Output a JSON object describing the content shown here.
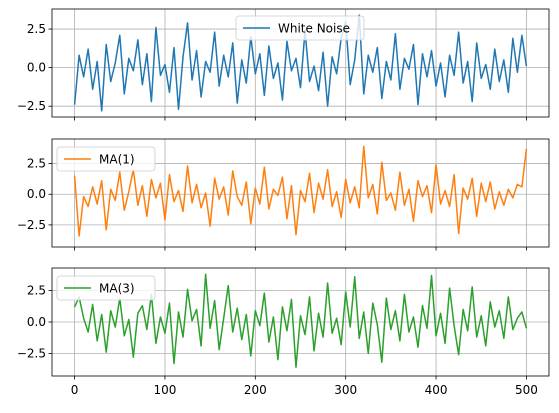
{
  "chart_data": [
    {
      "type": "line",
      "series": [
        {
          "name": "White Noise",
          "color": "#1f77b4",
          "x": [
            0,
            5,
            10,
            15,
            20,
            25,
            30,
            35,
            40,
            45,
            50,
            55,
            60,
            65,
            70,
            75,
            80,
            85,
            90,
            95,
            100,
            105,
            110,
            115,
            120,
            125,
            130,
            135,
            140,
            145,
            150,
            155,
            160,
            165,
            170,
            175,
            180,
            185,
            190,
            195,
            200,
            205,
            210,
            215,
            220,
            225,
            230,
            235,
            240,
            245,
            250,
            255,
            260,
            265,
            270,
            275,
            280,
            285,
            290,
            295,
            300,
            305,
            310,
            315,
            320,
            325,
            330,
            335,
            340,
            345,
            350,
            355,
            360,
            365,
            370,
            375,
            380,
            385,
            390,
            395,
            400,
            405,
            410,
            415,
            420,
            425,
            430,
            435,
            440,
            445,
            450,
            455,
            460,
            465,
            470,
            475,
            480,
            485,
            490,
            495,
            500
          ],
          "y": [
            -2.4,
            0.8,
            -0.6,
            1.2,
            -1.4,
            0.4,
            -2.8,
            1.5,
            -0.9,
            0.3,
            2.1,
            -1.7,
            0.6,
            -0.2,
            1.8,
            -1.1,
            0.9,
            -2.2,
            2.6,
            -0.5,
            0.2,
            -1.6,
            1.3,
            -2.7,
            0.7,
            2.9,
            -0.8,
            1.1,
            -1.9,
            0.4,
            -0.3,
            2.3,
            -1.2,
            0.8,
            -0.6,
            1.6,
            -2.3,
            0.5,
            -1.0,
            2.0,
            -0.4,
            0.9,
            -1.8,
            1.4,
            -0.7,
            0.3,
            -2.1,
            1.7,
            -0.2,
            0.6,
            -1.3,
            2.4,
            -0.9,
            0.1,
            -1.5,
            1.0,
            -2.5,
            0.7,
            -0.4,
            1.9,
            3.0,
            -1.1,
            0.5,
            3.4,
            -1.7,
            0.8,
            -0.3,
            1.3,
            -2.0,
            0.4,
            -0.8,
            2.2,
            -1.4,
            0.6,
            -0.1,
            1.5,
            -2.4,
            0.9,
            -0.6,
            1.1,
            -1.2,
            0.3,
            -1.9,
            0.8,
            -0.5,
            2.3,
            -1.0,
            0.4,
            -2.2,
            1.6,
            -0.7,
            0.2,
            -1.4,
            1.2,
            -0.9,
            0.5,
            -1.6,
            1.9,
            -0.3,
            2.1,
            0.1
          ]
        }
      ],
      "xlim": [
        -25,
        525
      ],
      "ylim": [
        -3.2,
        3.8
      ],
      "yticks": [
        -2.5,
        0.0,
        2.5
      ],
      "ytick_labels": [
        "−2.5",
        "0.0",
        "2.5"
      ],
      "xticks": [
        0,
        100,
        200,
        300,
        400,
        500
      ],
      "grid": true,
      "legend": "upper center"
    },
    {
      "type": "line",
      "series": [
        {
          "name": "MA(1)",
          "color": "#ff7f0e",
          "x": [
            0,
            5,
            10,
            15,
            20,
            25,
            30,
            35,
            40,
            45,
            50,
            55,
            60,
            65,
            70,
            75,
            80,
            85,
            90,
            95,
            100,
            105,
            110,
            115,
            120,
            125,
            130,
            135,
            140,
            145,
            150,
            155,
            160,
            165,
            170,
            175,
            180,
            185,
            190,
            195,
            200,
            205,
            210,
            215,
            220,
            225,
            230,
            235,
            240,
            245,
            250,
            255,
            260,
            265,
            270,
            275,
            280,
            285,
            290,
            295,
            300,
            305,
            310,
            315,
            320,
            325,
            330,
            335,
            340,
            345,
            350,
            355,
            360,
            365,
            370,
            375,
            380,
            385,
            390,
            395,
            400,
            405,
            410,
            415,
            420,
            425,
            430,
            435,
            440,
            445,
            450,
            455,
            460,
            465,
            470,
            475,
            480,
            485,
            490,
            495,
            500
          ],
          "y": [
            1.5,
            -3.4,
            -0.2,
            -1.0,
            0.6,
            -0.8,
            1.1,
            -2.9,
            0.4,
            -0.5,
            1.8,
            -1.3,
            0.2,
            2.0,
            -0.9,
            0.7,
            -1.8,
            1.2,
            -0.3,
            0.9,
            -2.1,
            1.6,
            -0.6,
            0.3,
            -1.4,
            2.3,
            -0.7,
            0.8,
            -1.1,
            0.1,
            -2.6,
            1.3,
            -0.4,
            0.6,
            -1.7,
            1.9,
            -0.2,
            -0.9,
            1.0,
            -2.4,
            0.5,
            -0.8,
            2.2,
            -1.2,
            0.4,
            -0.1,
            1.4,
            -2.0,
            0.7,
            -3.3,
            0.3,
            -0.6,
            1.7,
            -1.5,
            0.9,
            -0.4,
            2.0,
            -1.0,
            0.2,
            -1.9,
            1.2,
            -0.7,
            0.6,
            -1.1,
            3.9,
            -0.3,
            0.8,
            -1.6,
            2.6,
            -0.5,
            0.1,
            -1.3,
            1.8,
            -0.9,
            0.4,
            -2.2,
            1.1,
            -0.2,
            0.7,
            -1.5,
            2.4,
            -0.8,
            0.3,
            -1.0,
            1.6,
            -3.2,
            0.5,
            -0.4,
            1.3,
            -1.8,
            0.9,
            -0.6,
            1.0,
            -1.2,
            0.2,
            -0.9,
            0.4,
            -0.3,
            0.8,
            0.6,
            3.7
          ],
          "_ok": true
        }
      ],
      "xlim": [
        -25,
        525
      ],
      "ylim": [
        -4.3,
        4.5
      ],
      "yticks": [
        -2.5,
        0.0,
        2.5
      ],
      "ytick_labels": [
        "−2.5",
        "0.0",
        "2.5"
      ],
      "xticks": [
        0,
        100,
        200,
        300,
        400,
        500
      ],
      "grid": true,
      "legend": "upper left"
    },
    {
      "type": "line",
      "series": [
        {
          "name": "MA(3)",
          "color": "#2ca02c",
          "x": [
            0,
            5,
            10,
            15,
            20,
            25,
            30,
            35,
            40,
            45,
            50,
            55,
            60,
            65,
            70,
            75,
            80,
            85,
            90,
            95,
            100,
            105,
            110,
            115,
            120,
            125,
            130,
            135,
            140,
            145,
            150,
            155,
            160,
            165,
            170,
            175,
            180,
            185,
            190,
            195,
            200,
            205,
            210,
            215,
            220,
            225,
            230,
            235,
            240,
            245,
            250,
            255,
            260,
            265,
            270,
            275,
            280,
            285,
            290,
            295,
            300,
            305,
            310,
            315,
            320,
            325,
            330,
            335,
            340,
            345,
            350,
            355,
            360,
            365,
            370,
            375,
            380,
            385,
            390,
            395,
            400,
            405,
            410,
            415,
            420,
            425,
            430,
            435,
            440,
            445,
            450,
            455,
            460,
            465,
            470,
            475,
            480,
            485,
            490,
            495,
            500
          ],
          "y": [
            1.2,
            2.0,
            0.3,
            -0.8,
            1.4,
            -1.5,
            0.6,
            -2.4,
            0.9,
            -0.4,
            1.9,
            -1.1,
            0.2,
            -2.8,
            0.7,
            1.3,
            -0.6,
            2.2,
            -1.7,
            0.4,
            -0.9,
            1.5,
            -3.3,
            0.8,
            -1.2,
            2.6,
            0.1,
            1.0,
            -1.9,
            3.8,
            -0.5,
            1.7,
            -2.2,
            0.3,
            2.9,
            -0.8,
            1.1,
            -1.4,
            0.6,
            -2.7,
            0.9,
            -0.3,
            2.3,
            -1.6,
            0.4,
            -3.0,
            1.2,
            -0.7,
            1.8,
            -3.6,
            0.5,
            -1.0,
            2.0,
            -2.3,
            0.7,
            -1.2,
            3.1,
            -0.9,
            0.3,
            -1.8,
            2.4,
            -0.4,
            3.6,
            -1.3,
            0.8,
            -2.5,
            1.5,
            -0.2,
            -3.2,
            1.9,
            -0.6,
            0.9,
            -1.5,
            2.2,
            -0.8,
            0.4,
            -2.0,
            1.3,
            -0.5,
            3.7,
            -1.1,
            0.7,
            -1.7,
            2.7,
            -0.3,
            -2.6,
            1.0,
            -0.7,
            2.8,
            -1.2,
            0.5,
            -1.9,
            1.6,
            -0.4,
            0.9,
            -1.3,
            2.0,
            -0.6,
            0.3,
            0.8,
            -0.5
          ]
        }
      ],
      "xlim": [
        -25,
        525
      ],
      "ylim": [
        -4.3,
        4.3
      ],
      "yticks": [
        -2.5,
        0.0,
        2.5
      ],
      "ytick_labels": [
        "−2.5",
        "0.0",
        "2.5"
      ],
      "xticks": [
        0,
        100,
        200,
        300,
        400,
        500
      ],
      "xtick_labels": [
        "0",
        "100",
        "200",
        "300",
        "400",
        "500"
      ],
      "grid": true,
      "legend": "upper left"
    }
  ]
}
